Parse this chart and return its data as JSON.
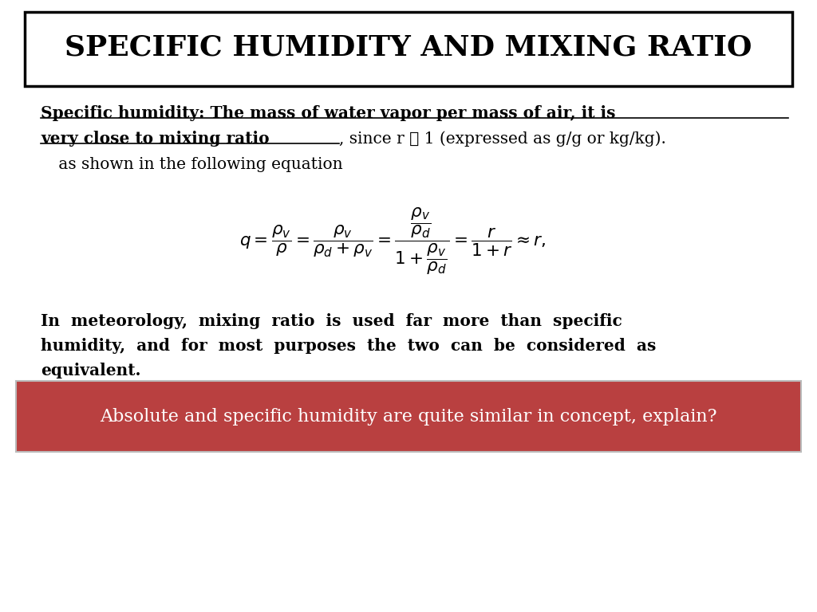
{
  "title": "SPECIFIC HUMIDITY AND MIXING RATIO",
  "background_color": "#ffffff",
  "title_box_color": "#000000",
  "text_color": "#000000",
  "normal_text_1": ", since r ≪ 1 (expressed as g/g or kg/kg).",
  "normal_text_2": " as shown in the following equation",
  "paragraph2_line1": "In  meteorology,  mixing  ratio  is  used  far  more  than  specific",
  "paragraph2_line2": "humidity,  and  for  most  purposes  the  two  can  be  considered  as",
  "paragraph2_line3": "equivalent.",
  "box_text": "Absolute and specific humidity are quite similar in concept, explain?",
  "box_bg_color": "#b94040",
  "box_text_color": "#ffffff"
}
